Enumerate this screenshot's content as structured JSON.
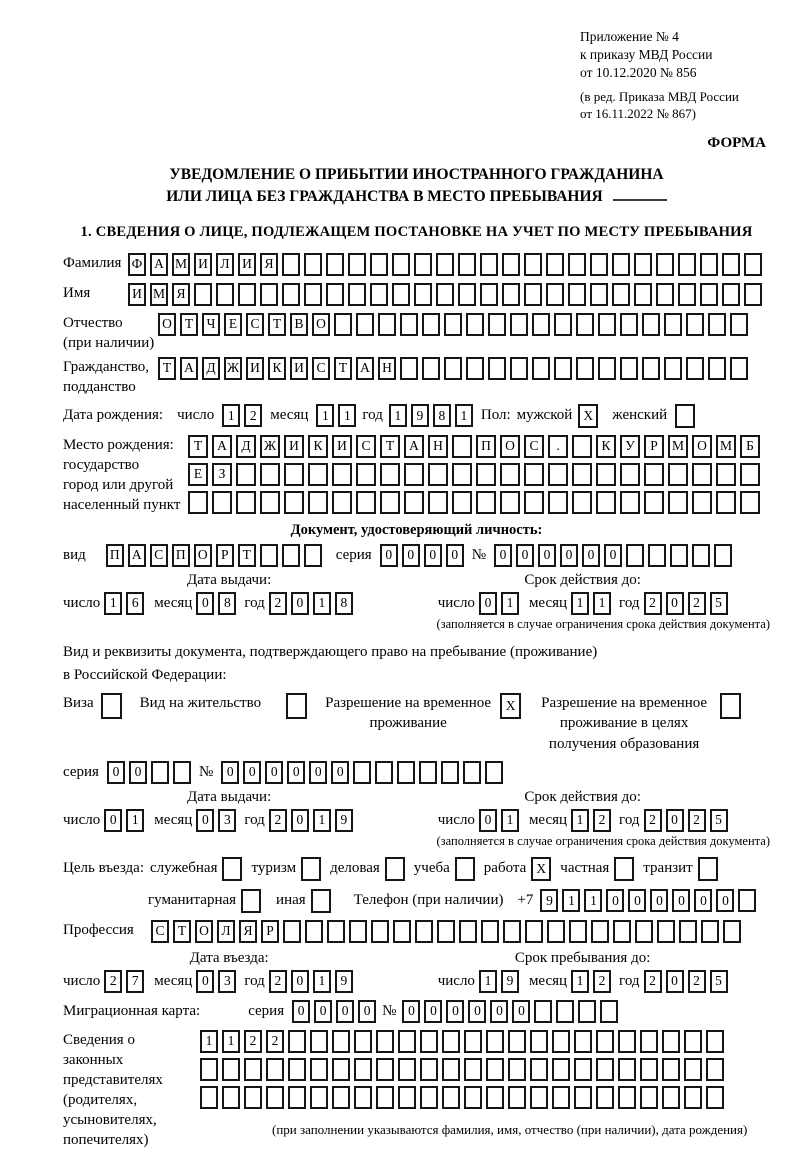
{
  "header": {
    "appendix_line1": "Приложение № 4",
    "appendix_line2": "к приказу МВД России",
    "appendix_line3": "от 10.12.2020 № 856",
    "edition_line1": "(в ред. Приказа МВД России",
    "edition_line2": "от 16.11.2022 № 867)",
    "forma_label": "ФОРМА"
  },
  "title": {
    "line1": "УВЕДОМЛЕНИЕ О ПРИБЫТИИ ИНОСТРАННОГО ГРАЖДАНИНА",
    "line2": "ИЛИ ЛИЦА БЕЗ ГРАЖДАНСТВА В МЕСТО ПРЕБЫВАНИЯ"
  },
  "section1": {
    "heading": "1. СВЕДЕНИЯ О ЛИЦЕ, ПОДЛЕЖАЩЕМ ПОСТАНОВКЕ НА УЧЕТ ПО МЕСТУ ПРЕБЫВАНИЯ",
    "date_labels": {
      "day": "число",
      "month": "месяц",
      "year": "год"
    },
    "surname": {
      "label": "Фамилия",
      "cells": {
        "value": "ФАМИЛИЯ",
        "count": 29
      }
    },
    "given_name": {
      "label": "Имя",
      "cells": {
        "value": "ИМЯ",
        "count": 29
      }
    },
    "patronymic": {
      "label1": "Отчество",
      "label2": "(при наличии)",
      "cells": {
        "value": "ОТЧЕСТВО",
        "count": 27
      }
    },
    "citizenship": {
      "label1": "Гражданство,",
      "label2": "подданство",
      "cells": {
        "value": "ТАДЖИКИСТАН",
        "count": 27
      }
    },
    "birth_date": {
      "label": "Дата рождения:",
      "day": {
        "value": "12",
        "count": 2
      },
      "month": {
        "value": "11",
        "count": 2
      },
      "year": {
        "value": "1981",
        "count": 4
      },
      "sex_label": "Пол:",
      "male_label": "мужской",
      "male_box": {
        "value": "X",
        "count": 1
      },
      "female_label": "женский",
      "female_box": {
        "value": "",
        "count": 1
      }
    },
    "birth_place": {
      "label1": "Место рождения:",
      "label2": "государство",
      "label3": "город или другой",
      "label4": "населенный пункт",
      "row1": {
        "value": "ТАДЖИКИСТАН ПОС. КУРМОМБ",
        "count": 24
      },
      "row2": {
        "value": "ЕЗ",
        "count": 24
      },
      "row3": {
        "value": "",
        "count": 24
      }
    },
    "identity_doc": {
      "heading": "Документ, удостоверяющий личность:",
      "kind_label": "вид",
      "kind": {
        "value": "ПАСПОРТ",
        "count": 10
      },
      "series_label": "серия",
      "series": {
        "value": "0000",
        "count": 4
      },
      "number_label": "№",
      "number": {
        "value": "000000",
        "count": 11
      },
      "issue_heading": "Дата выдачи:",
      "issue_day": {
        "value": "16",
        "count": 2
      },
      "issue_month": {
        "value": "08",
        "count": 2
      },
      "issue_year": {
        "value": "2018",
        "count": 4
      },
      "valid_heading": "Срок действия до:",
      "valid_day": {
        "value": "01",
        "count": 2
      },
      "valid_month": {
        "value": "11",
        "count": 2
      },
      "valid_year": {
        "value": "2025",
        "count": 4
      },
      "valid_note": "(заполняется в случае ограничения срока действия документа)"
    },
    "residence_doc": {
      "intro_line1": "Вид и реквизиты документа, подтверждающего право на пребывание (проживание)",
      "intro_line2": "в Российской Федерации:",
      "options": [
        {
          "label": "Виза",
          "box": {
            "value": "",
            "count": 1
          }
        },
        {
          "label": "Вид на жительство",
          "box": {
            "value": "",
            "count": 1
          }
        },
        {
          "label": "Разрешение на временное проживание",
          "box": {
            "value": "X",
            "count": 1
          }
        },
        {
          "label": "Разрешение на временное проживание в целях получения образования",
          "box": {
            "value": "",
            "count": 1
          }
        }
      ],
      "series_label": "серия",
      "series": {
        "value": "00",
        "count": 4
      },
      "number_label": "№",
      "number": {
        "value": "000000",
        "count": 13
      },
      "issue_heading": "Дата выдачи:",
      "issue_day": {
        "value": "01",
        "count": 2
      },
      "issue_month": {
        "value": "03",
        "count": 2
      },
      "issue_year": {
        "value": "2019",
        "count": 4
      },
      "valid_heading": "Срок действия до:",
      "valid_day": {
        "value": "01",
        "count": 2
      },
      "valid_month": {
        "value": "12",
        "count": 2
      },
      "valid_year": {
        "value": "2025",
        "count": 4
      },
      "valid_note": "(заполняется в случае ограничения срока действия документа)"
    },
    "purpose": {
      "label": "Цель въезда:",
      "options_row1": [
        {
          "label": "служебная",
          "box": {
            "value": "",
            "count": 1
          }
        },
        {
          "label": "туризм",
          "box": {
            "value": "",
            "count": 1
          }
        },
        {
          "label": "деловая",
          "box": {
            "value": "",
            "count": 1
          }
        },
        {
          "label": "учеба",
          "box": {
            "value": "",
            "count": 1
          }
        },
        {
          "label": "работа",
          "box": {
            "value": "X",
            "count": 1
          }
        },
        {
          "label": "частная",
          "box": {
            "value": "",
            "count": 1
          }
        },
        {
          "label": "транзит",
          "box": {
            "value": "",
            "count": 1
          }
        }
      ],
      "options_row2": [
        {
          "label": "гуманитарная",
          "box": {
            "value": "",
            "count": 1
          }
        },
        {
          "label": "иная",
          "box": {
            "value": "",
            "count": 1
          }
        }
      ],
      "phone_label": "Телефон (при наличии)",
      "phone_prefix": "+7",
      "phone": {
        "value": "911000000",
        "count": 10
      }
    },
    "profession": {
      "label": "Профессия",
      "cells": {
        "value": "СТОЛЯР",
        "count": 27
      }
    },
    "entry": {
      "entry_heading": "Дата въезда:",
      "entry_day": {
        "value": "27",
        "count": 2
      },
      "entry_month": {
        "value": "03",
        "count": 2
      },
      "entry_year": {
        "value": "2019",
        "count": 4
      },
      "stay_heading": "Срок пребывания до:",
      "stay_day": {
        "value": "19",
        "count": 2
      },
      "stay_month": {
        "value": "12",
        "count": 2
      },
      "stay_year": {
        "value": "2025",
        "count": 4
      }
    },
    "migration_card": {
      "label": "Миграционная карта:",
      "series_label": "серия",
      "series": {
        "value": "0000",
        "count": 4
      },
      "number_label": "№",
      "number": {
        "value": "000000",
        "count": 10
      }
    },
    "legal_reps": {
      "label1": "Сведения о",
      "label2": "законных",
      "label3": "представителях",
      "label4": "(родителях,",
      "label5": "усыновителях,",
      "label6": "попечителях)",
      "row1": {
        "value": "1122",
        "count": 24
      },
      "row2": {
        "value": "",
        "count": 24
      },
      "row3": {
        "value": "",
        "count": 24
      },
      "note": "(при заполнении указываются фамилия, имя, отчество (при наличии), дата рождения)"
    }
  }
}
